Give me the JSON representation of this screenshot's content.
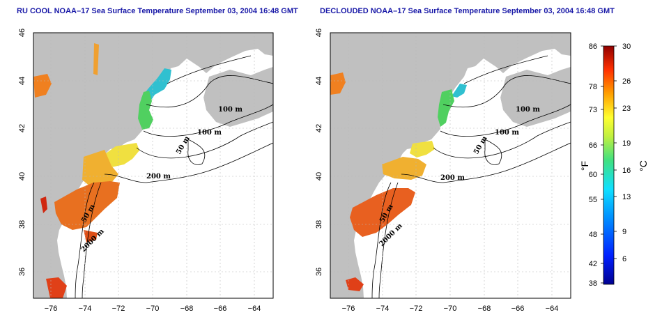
{
  "titles": {
    "left": "RU COOL NOAA–17 Sea Surface Temperature September 03, 2004 16:48 GMT",
    "right": "DECLOUDED NOAA–17 Sea Surface Temperature September 03, 2004 16:48 GMT"
  },
  "axes": {
    "x_ticks": [
      "−76",
      "−74",
      "−72",
      "−70",
      "−68",
      "−66",
      "−64"
    ],
    "y_ticks": [
      "46",
      "44",
      "42",
      "40",
      "38",
      "36"
    ]
  },
  "contours": {
    "m100a": "100 m",
    "m100b": "100 m",
    "m50": "50 m",
    "m200": "200 m",
    "m50b": "50 m",
    "m2000": "2000 m"
  },
  "colorbar": {
    "f_ticks": [
      "86",
      "78",
      "73",
      "66",
      "60",
      "55",
      "48",
      "42",
      "38"
    ],
    "c_ticks": [
      "30",
      "26",
      "23",
      "19",
      "16",
      "13",
      "9",
      "6"
    ],
    "f_label": "°F",
    "c_label": "°C"
  },
  "colors": {
    "land": "#c0c0c0",
    "ocean": "#ffffff",
    "title": "#1a1aa8",
    "warm": "#e8521c",
    "hot": "#c81e10",
    "mid": "#f0a020",
    "yellow": "#e8e040",
    "green": "#3cc060",
    "cyan": "#20c8d8"
  }
}
